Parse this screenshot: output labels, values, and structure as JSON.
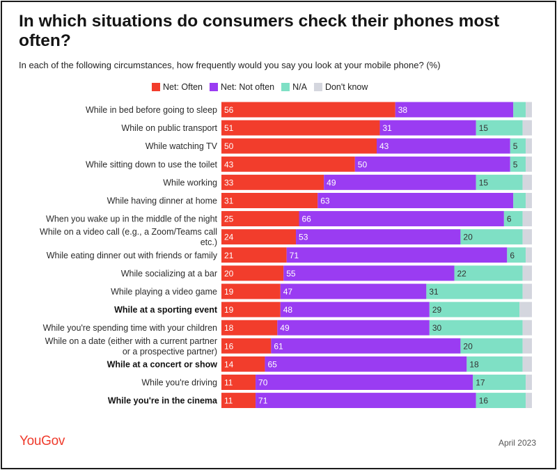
{
  "header": {
    "title": "In which situations do consumers check their phones most often?",
    "subtitle": "In each of the following circumstances, how frequently would you say you look at your mobile phone? (%)"
  },
  "footer": {
    "brand": "YouGov",
    "date": "April 2023"
  },
  "chart_data": {
    "type": "bar",
    "orientation": "horizontal",
    "stacked": true,
    "xlim": [
      0,
      100
    ],
    "legend_position": "top",
    "categories": [
      "While in bed before going to sleep",
      "While on public transport",
      "While watching TV",
      "While sitting down to use the toilet",
      "While working",
      "While having dinner at home",
      "When you wake up in the middle of the night",
      "While on a video call (e.g., a Zoom/Teams call etc.)",
      "While eating dinner out with friends or family",
      "While socializing at a bar",
      "While playing a video game",
      "While at a sporting event",
      "While you're spending time with your children",
      "While on a date (either with a current partner or a prospective partner)",
      "While at a concert or show",
      "While you're driving",
      "While you're in the cinema"
    ],
    "category_lines": [
      [
        "While in bed before going to sleep"
      ],
      [
        "While on public transport"
      ],
      [
        "While watching TV"
      ],
      [
        "While sitting down to use the toilet"
      ],
      [
        "While working"
      ],
      [
        "While having dinner at home"
      ],
      [
        "When you wake up in the middle of the night"
      ],
      [
        "While on a video call (e.g., a Zoom/Teams call",
        "etc.)"
      ],
      [
        "While eating dinner out with friends or family"
      ],
      [
        "While socializing at a bar"
      ],
      [
        "While playing a video game"
      ],
      [
        "While at a sporting event"
      ],
      [
        "While you're spending time with your children"
      ],
      [
        "While on a date (either with a current partner",
        "or a prospective partner)"
      ],
      [
        "While at a concert or show"
      ],
      [
        "While you're driving"
      ],
      [
        "While you're in the cinema"
      ]
    ],
    "bold_categories": [
      11,
      14,
      16
    ],
    "series": [
      {
        "name": "Net: Often",
        "color": "#f23d2c",
        "label_color": "#ffffff",
        "values": [
          56,
          51,
          50,
          43,
          33,
          31,
          25,
          24,
          21,
          20,
          19,
          19,
          18,
          16,
          14,
          11,
          11
        ]
      },
      {
        "name": "Net: Not often",
        "color": "#9a3cf2",
        "label_color": "#ffffff",
        "values": [
          38,
          31,
          43,
          50,
          49,
          63,
          66,
          53,
          71,
          55,
          47,
          48,
          49,
          61,
          65,
          70,
          71
        ]
      },
      {
        "name": "N/A",
        "color": "#7fe0c5",
        "label_color": "#333333",
        "values": [
          4,
          15,
          5,
          5,
          15,
          4,
          6,
          20,
          6,
          22,
          31,
          29,
          30,
          20,
          18,
          17,
          16
        ]
      },
      {
        "name": "Don't know",
        "color": "#d4d6de",
        "label_color": "#333333",
        "values": [
          2,
          3,
          2,
          2,
          3,
          2,
          3,
          3,
          2,
          3,
          3,
          4,
          3,
          3,
          3,
          2,
          2
        ]
      }
    ],
    "hidden_labels_below": 5
  }
}
